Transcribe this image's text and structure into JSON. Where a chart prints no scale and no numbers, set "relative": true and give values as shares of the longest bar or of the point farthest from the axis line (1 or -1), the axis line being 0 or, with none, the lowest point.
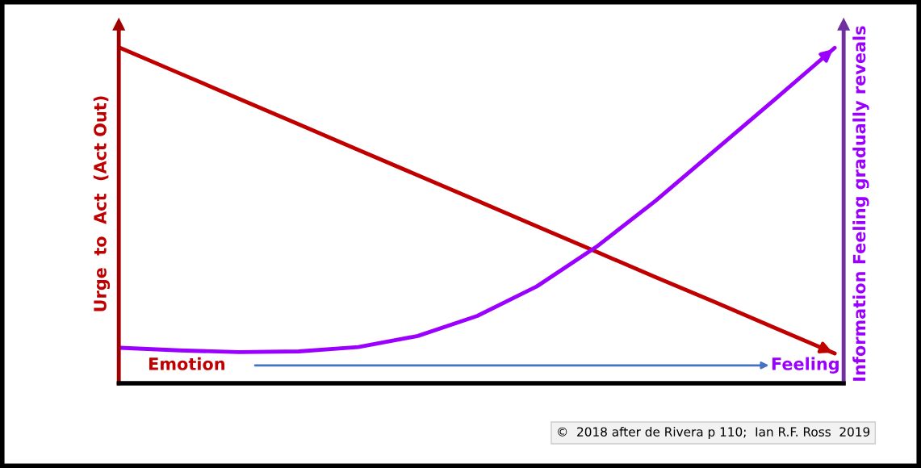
{
  "chart_data": {
    "type": "line",
    "relative": true,
    "grid": false,
    "legend": false,
    "marker": "none",
    "line_style": "solid",
    "ylabel": "Urge  to  Act  (Act Out)",
    "y2label": "Information Feeling gradually reveals",
    "categories": [
      null,
      null,
      null,
      null,
      null,
      null,
      null,
      null,
      null,
      null,
      null,
      null,
      null
    ],
    "series": [
      {
        "color": "#c00000",
        "values": [
          1,
          0.924,
          0.848,
          0.772,
          0.696,
          0.62,
          0.544,
          0.468,
          0.392,
          0.316,
          0.241,
          0.165,
          0.089
        ]
      },
      {
        "color": "#9b00ff",
        "values": [
          0.106,
          0.098,
          0.093,
          0.095,
          0.108,
          0.141,
          0.201,
          0.289,
          0.407,
          0.545,
          0.696,
          0.847,
          1
        ]
      }
    ],
    "annotations": [
      "Emotion",
      "Feeling",
      "©  2018 after de Rivera p 110;  Ian R.F. Ross  2019"
    ]
  }
}
